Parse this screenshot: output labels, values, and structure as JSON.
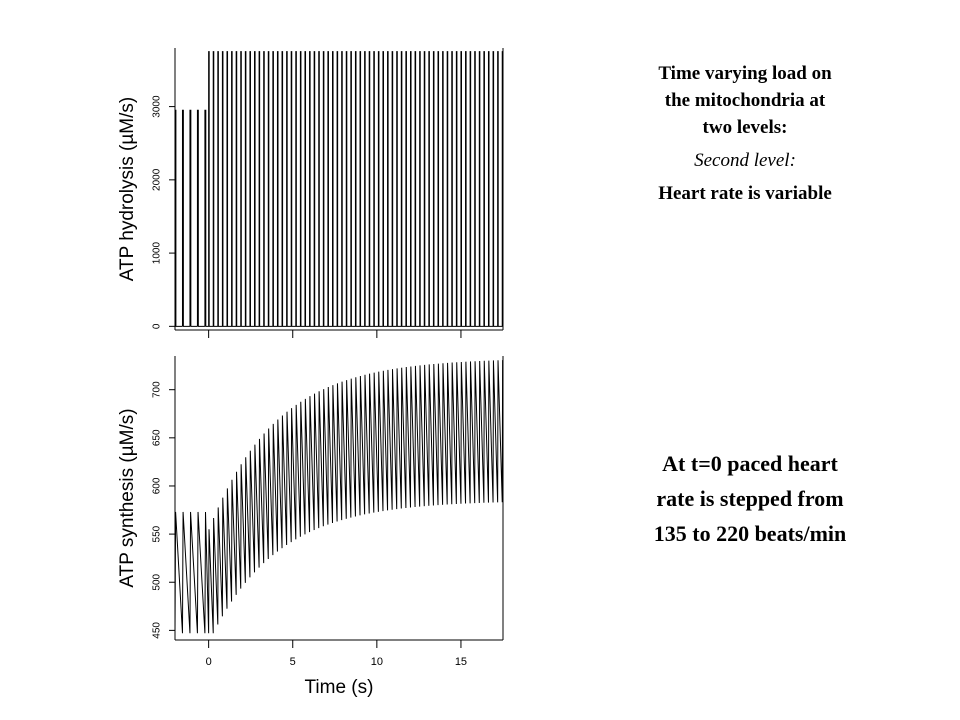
{
  "description": {
    "title_lines": [
      "Time varying load on",
      "the mitochondria at",
      "two levels:"
    ],
    "level_label": "Second level",
    "level_colon": ":",
    "detail": "Heart rate is variable"
  },
  "note": {
    "lines": [
      "At t=0 paced heart",
      "rate is stepped from",
      "135 to 220 beats/min"
    ]
  },
  "chart_data": [
    {
      "type": "line",
      "ylabel": "ATP hydrolysis  (µM/s)",
      "xlabel": "",
      "xlim": [
        -2,
        17.5
      ],
      "ylim": [
        -50,
        3800
      ],
      "x_ticks": [
        0,
        5,
        10,
        15
      ],
      "x_tick_labels_visible": false,
      "y_ticks": [
        0,
        1000,
        2000,
        3000
      ],
      "y_tick_labels": [
        "0",
        "1000",
        "2000",
        "3000"
      ],
      "grid": false,
      "series": [
        {
          "pulse_train": true,
          "segments": [
            {
              "t_start": -2.0,
              "t_end": 0.0,
              "beats_per_min": 135,
              "peak": 2950,
              "baseline": 0
            },
            {
              "t_start": 0.0,
              "t_end": 17.5,
              "beats_per_min": 220,
              "peak": 3750,
              "baseline": 0
            }
          ]
        }
      ]
    },
    {
      "type": "line",
      "ylabel": "ATP synthesis  (µM/s)",
      "xlabel": "Time (s)",
      "xlim": [
        -2,
        17.5
      ],
      "ylim": [
        440,
        735
      ],
      "x_ticks": [
        0,
        5,
        10,
        15
      ],
      "x_tick_labels": [
        "0",
        "5",
        "10",
        "15"
      ],
      "y_ticks": [
        450,
        500,
        550,
        600,
        650,
        700
      ],
      "y_tick_labels": [
        "450",
        "500",
        "550",
        "600",
        "650",
        "700"
      ],
      "grid": false,
      "series": [
        {
          "oscillation": true,
          "segments": [
            {
              "t_start": -2.0,
              "t_end": 0.0,
              "beats_per_min": 135,
              "min": 447,
              "max": 573
            },
            {
              "t_start": 0.0,
              "t_end": 17.5,
              "beats_per_min": 220,
              "min_start": 447,
              "min_end": 585,
              "max_start": 555,
              "max_end": 733,
              "time_constant_s": 4.0
            }
          ]
        }
      ]
    }
  ]
}
